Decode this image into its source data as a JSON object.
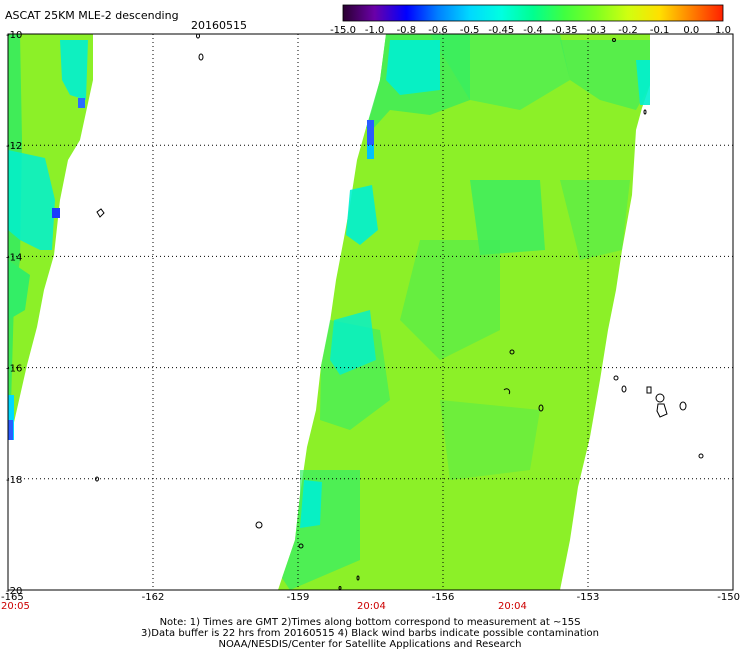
{
  "header": {
    "title": "ASCAT 25KM MLE-2 descending",
    "date": "20160515"
  },
  "colorbar": {
    "labels": [
      "-15.0",
      "-1.0",
      "-0.8",
      "-0.6",
      "-0.5",
      "-0.45",
      "-0.4",
      "-0.35",
      "-0.3",
      "-0.2",
      "-0.1",
      "0.0",
      "1.0"
    ],
    "colors": [
      "#2a0030",
      "#6a00a8",
      "#0000ff",
      "#0080ff",
      "#00d8ff",
      "#00ffe0",
      "#00ff90",
      "#40ff40",
      "#80ff20",
      "#d0ff10",
      "#ffe000",
      "#ff8000",
      "#ff2000"
    ]
  },
  "map": {
    "x_axis": {
      "ticks": [
        "-165",
        "-162",
        "-159",
        "-156",
        "-153",
        "-150"
      ]
    },
    "y_axis": {
      "ticks": [
        "-10",
        "-12",
        "-14",
        "-16",
        "-18",
        "-20"
      ]
    },
    "time_labels": [
      "20:05",
      "20:04",
      "20:04"
    ],
    "swath_colors": {
      "main": "#8cf028",
      "edge": "#33ee66",
      "low": "#00f0d0",
      "lowest": "#2a5cff"
    }
  },
  "notes": {
    "line1": "Note: 1) Times are GMT 2)Times along bottom correspond to measurement at ~15S",
    "line2": "3)Data buffer is 22 hrs from 20160515 4) Black wind barbs indicate possible contamination",
    "line3": "NOAA/NESDIS/Center for Satellite Applications and Research"
  }
}
